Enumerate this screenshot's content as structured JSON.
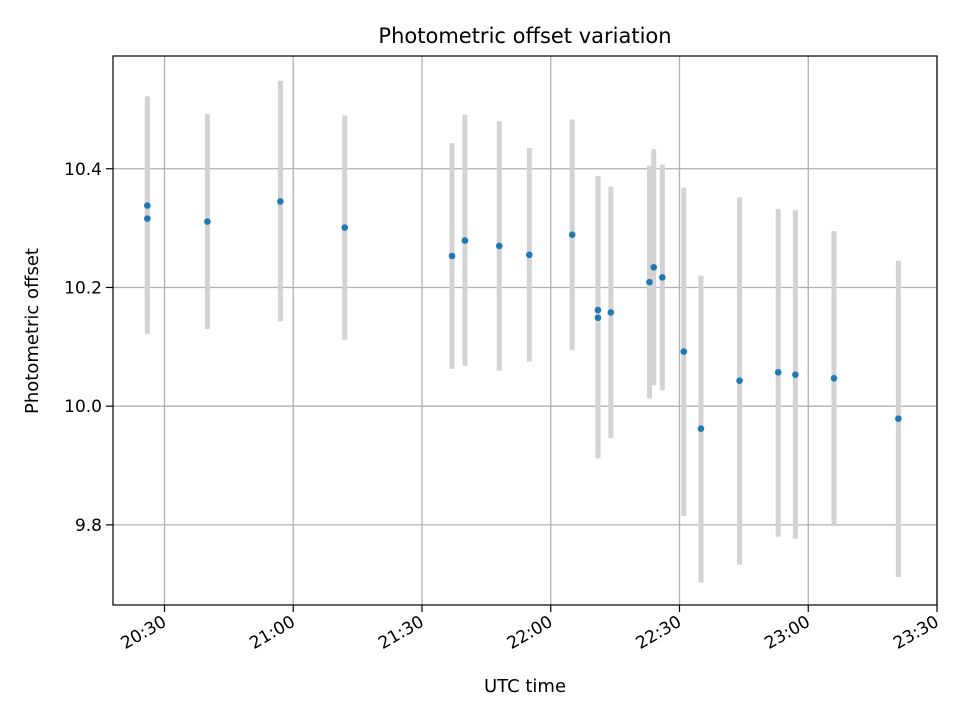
{
  "chart_data": {
    "type": "scatter",
    "title": "Photometric offset variation",
    "xlabel": "UTC time",
    "ylabel": "Photometric offset",
    "x_axis": {
      "range": [
        "20:18",
        "23:30"
      ],
      "ticks": [
        "20:30",
        "21:00",
        "21:30",
        "22:00",
        "22:30",
        "23:00",
        "23:30"
      ]
    },
    "y_axis": {
      "range": [
        9.665,
        10.59
      ],
      "ticks": [
        9.8,
        10.0,
        10.2,
        10.4
      ],
      "tick_labels": [
        "9.8",
        "10.0",
        "10.2",
        "10.4"
      ]
    },
    "grid": true,
    "colors": {
      "point": "#1f77b4",
      "errorbar": "#d3d3d3",
      "grid": "#b0b0b0"
    },
    "series": [
      {
        "points": [
          {
            "time": "20:26",
            "y": 10.338,
            "low": 10.155,
            "high": 10.522
          },
          {
            "time": "20:26",
            "y": 10.316,
            "low": 10.122,
            "high": 10.51
          },
          {
            "time": "20:40",
            "y": 10.311,
            "low": 10.13,
            "high": 10.492
          },
          {
            "time": "20:57",
            "y": 10.345,
            "low": 10.143,
            "high": 10.548
          },
          {
            "time": "21:12",
            "y": 10.301,
            "low": 10.112,
            "high": 10.49
          },
          {
            "time": "21:37",
            "y": 10.253,
            "low": 10.063,
            "high": 10.443
          },
          {
            "time": "21:40",
            "y": 10.279,
            "low": 10.068,
            "high": 10.491
          },
          {
            "time": "21:48",
            "y": 10.27,
            "low": 10.06,
            "high": 10.48
          },
          {
            "time": "21:55",
            "y": 10.255,
            "low": 10.075,
            "high": 10.435
          },
          {
            "time": "22:05",
            "y": 10.289,
            "low": 10.095,
            "high": 10.483
          },
          {
            "time": "22:11",
            "y": 10.149,
            "low": 9.912,
            "high": 10.385
          },
          {
            "time": "22:11",
            "y": 10.162,
            "low": 9.935,
            "high": 10.388
          },
          {
            "time": "22:14",
            "y": 10.158,
            "low": 9.946,
            "high": 10.37
          },
          {
            "time": "22:23",
            "y": 10.209,
            "low": 10.013,
            "high": 10.405
          },
          {
            "time": "22:24",
            "y": 10.234,
            "low": 10.035,
            "high": 10.433
          },
          {
            "time": "22:26",
            "y": 10.217,
            "low": 10.027,
            "high": 10.407
          },
          {
            "time": "22:31",
            "y": 10.092,
            "low": 9.815,
            "high": 10.368
          },
          {
            "time": "22:35",
            "y": 9.962,
            "low": 9.703,
            "high": 10.22
          },
          {
            "time": "22:44",
            "y": 10.043,
            "low": 9.733,
            "high": 10.352
          },
          {
            "time": "22:53",
            "y": 10.057,
            "low": 9.78,
            "high": 10.332
          },
          {
            "time": "22:57",
            "y": 10.053,
            "low": 9.777,
            "high": 10.33
          },
          {
            "time": "23:06",
            "y": 10.047,
            "low": 9.798,
            "high": 10.295
          },
          {
            "time": "23:21",
            "y": 9.979,
            "low": 9.712,
            "high": 10.245
          }
        ]
      }
    ]
  }
}
